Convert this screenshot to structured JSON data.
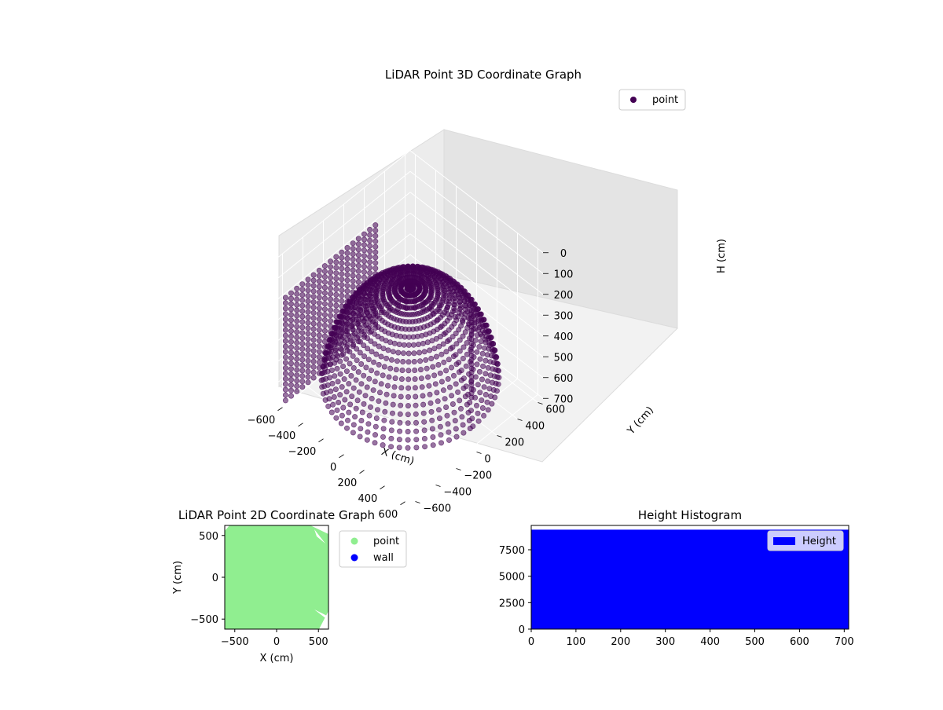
{
  "chart_data": [
    {
      "type": "scatter3d",
      "title": "LiDAR Point 3D Coordinate Graph",
      "xlabel": "X (cm)",
      "ylabel": "Y (cm)",
      "zlabel": "H (cm)",
      "xlim": [
        -650,
        650
      ],
      "ylim": [
        -650,
        650
      ],
      "zlim": [
        0,
        700
      ],
      "z_inverted": true,
      "x_ticks": [
        "−600",
        "−400",
        "−200",
        "0",
        "200",
        "400",
        "600"
      ],
      "y_ticks": [
        "−600",
        "−400",
        "−200",
        "0",
        "200",
        "400",
        "600"
      ],
      "z_ticks": [
        "0",
        "100",
        "200",
        "300",
        "400",
        "500",
        "600",
        "700"
      ],
      "series": [
        {
          "name": "point",
          "color": "#440154",
          "description": "hemispherical dome of scan points centered near origin plus vertical wall strips"
        }
      ],
      "legend": "top-right",
      "grid": true
    },
    {
      "type": "scatter",
      "title": "LiDAR Point 2D Coordinate Graph",
      "xlabel": "X (cm)",
      "ylabel": "Y (cm)",
      "xlim": [
        -620,
        620
      ],
      "ylim": [
        -620,
        620
      ],
      "x_ticks": [
        "−500",
        "0",
        "500"
      ],
      "y_ticks": [
        "−500",
        "0",
        "500"
      ],
      "series": [
        {
          "name": "point",
          "color": "#90ee90"
        },
        {
          "name": "wall",
          "color": "#0000ff"
        }
      ],
      "legend": "outside-right"
    },
    {
      "type": "bar",
      "title": "Height Histogram",
      "xlim": [
        0,
        710
      ],
      "ylim": [
        0,
        9800
      ],
      "x_ticks": [
        "0",
        "100",
        "200",
        "300",
        "400",
        "500",
        "600",
        "700"
      ],
      "y_ticks": [
        "0",
        "2500",
        "5000",
        "7500"
      ],
      "x_tick_values": [
        0,
        100,
        200,
        300,
        400,
        500,
        600,
        700
      ],
      "y_tick_values": [
        0,
        2500,
        5000,
        7500
      ],
      "values": [
        {
          "x0": 0,
          "x1": 710,
          "count": 9400
        }
      ],
      "series": [
        {
          "name": "Height",
          "color": "#0000ff"
        }
      ],
      "legend": "top-right"
    }
  ]
}
